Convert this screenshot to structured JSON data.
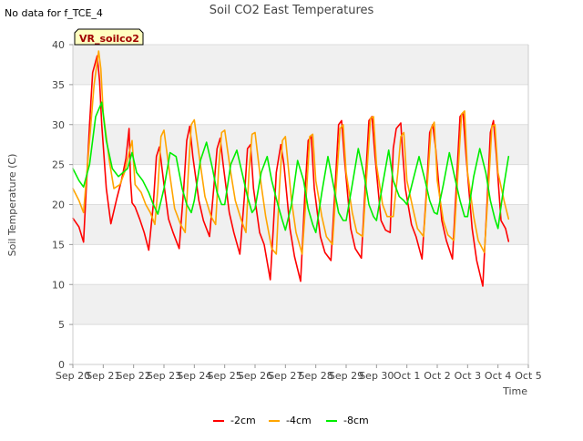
{
  "header": {
    "no_data_note": "No data for f_TCE_4",
    "title": "Soil CO2 East Temperatures"
  },
  "chart_data": {
    "type": "line",
    "title": "Soil CO2 East Temperatures",
    "xlabel": "Time",
    "ylabel": "Soil Temperature (C)",
    "station_label": "VR_soilco2",
    "x_tick_labels": [
      "Sep 20",
      "Sep 21",
      "Sep 22",
      "Sep 23",
      "Sep 24",
      "Sep 25",
      "Sep 26",
      "Sep 27",
      "Sep 28",
      "Sep 29",
      "Sep 30",
      "Oct 1",
      "Oct 2",
      "Oct 3",
      "Oct 4",
      "Oct 5"
    ],
    "y_ticks": [
      0,
      5,
      10,
      15,
      20,
      25,
      30,
      35,
      40
    ],
    "xlim": [
      0,
      15
    ],
    "ylim": [
      0,
      40
    ],
    "grid": "horizontal bands",
    "legend_position": "bottom-center",
    "series": [
      {
        "name": "-2cm",
        "color": "#ff0000",
        "x": [
          0.0,
          0.2,
          0.35,
          0.55,
          0.65,
          0.8,
          0.88,
          0.95,
          1.1,
          1.25,
          1.45,
          1.6,
          1.75,
          1.85,
          1.9,
          1.95,
          2.05,
          2.2,
          2.35,
          2.5,
          2.65,
          2.75,
          2.85,
          3.0,
          3.15,
          3.3,
          3.5,
          3.65,
          3.75,
          3.85,
          3.95,
          4.15,
          4.3,
          4.5,
          4.65,
          4.75,
          4.85,
          4.95,
          5.15,
          5.3,
          5.5,
          5.65,
          5.75,
          5.85,
          5.95,
          6.15,
          6.3,
          6.5,
          6.6,
          6.7,
          6.85,
          6.95,
          7.15,
          7.3,
          7.5,
          7.65,
          7.75,
          7.85,
          7.95,
          8.15,
          8.3,
          8.5,
          8.65,
          8.75,
          8.85,
          8.95,
          9.15,
          9.3,
          9.5,
          9.65,
          9.75,
          9.85,
          9.95,
          10.15,
          10.3,
          10.45,
          10.55,
          10.65,
          10.8,
          10.85,
          10.95,
          11.15,
          11.3,
          11.5,
          11.65,
          11.75,
          11.85,
          11.95,
          12.15,
          12.3,
          12.5,
          12.65,
          12.75,
          12.85,
          12.95,
          13.15,
          13.3,
          13.5,
          13.65,
          13.75,
          13.85,
          13.95,
          14.1,
          14.25,
          14.35
        ],
        "y": [
          18.3,
          17.2,
          15.3,
          30.0,
          36.5,
          38.6,
          35.5,
          30.0,
          22.0,
          17.6,
          20.8,
          23.0,
          25.8,
          29.5,
          23.0,
          20.2,
          19.7,
          18.2,
          16.5,
          14.3,
          20.0,
          26.0,
          27.2,
          22.5,
          18.2,
          16.5,
          14.5,
          22.0,
          28.0,
          29.8,
          26.0,
          20.5,
          18.0,
          16.0,
          22.5,
          27.0,
          28.3,
          25.0,
          19.0,
          16.5,
          13.8,
          21.0,
          27.0,
          27.5,
          22.0,
          16.5,
          15.0,
          10.6,
          17.0,
          24.0,
          27.5,
          25.0,
          17.0,
          13.5,
          10.4,
          22.0,
          28.0,
          28.5,
          22.0,
          16.0,
          14.0,
          13.0,
          23.0,
          30.0,
          30.5,
          25.5,
          17.0,
          14.5,
          13.3,
          24.0,
          30.5,
          31.0,
          26.0,
          18.0,
          16.8,
          16.5,
          27.0,
          29.5,
          30.2,
          27.0,
          22.0,
          17.5,
          16.0,
          13.2,
          22.0,
          29.0,
          30.0,
          27.0,
          18.0,
          15.5,
          13.2,
          24.0,
          31.0,
          31.5,
          26.0,
          17.0,
          13.0,
          9.8,
          21.0,
          29.0,
          30.5,
          26.0,
          18.0,
          17.0,
          15.4
        ]
      },
      {
        "name": "-4cm",
        "color": "#ffa500",
        "x": [
          0.0,
          0.2,
          0.35,
          0.55,
          0.7,
          0.85,
          0.92,
          1.0,
          1.2,
          1.35,
          1.55,
          1.7,
          1.85,
          1.95,
          2.05,
          2.25,
          2.4,
          2.55,
          2.7,
          2.8,
          2.9,
          3.0,
          3.2,
          3.35,
          3.55,
          3.7,
          3.8,
          3.9,
          4.0,
          4.2,
          4.35,
          4.55,
          4.7,
          4.8,
          4.9,
          5.0,
          5.2,
          5.35,
          5.55,
          5.7,
          5.8,
          5.9,
          6.0,
          6.2,
          6.35,
          6.55,
          6.7,
          6.8,
          6.9,
          7.0,
          7.2,
          7.35,
          7.55,
          7.7,
          7.8,
          7.9,
          8.0,
          8.2,
          8.35,
          8.55,
          8.7,
          8.8,
          8.9,
          9.0,
          9.2,
          9.35,
          9.55,
          9.7,
          9.8,
          9.9,
          10.0,
          10.2,
          10.35,
          10.55,
          10.7,
          10.8,
          10.9,
          11.0,
          11.2,
          11.35,
          11.55,
          11.7,
          11.8,
          11.9,
          12.0,
          12.2,
          12.35,
          12.55,
          12.7,
          12.8,
          12.9,
          13.0,
          13.2,
          13.35,
          13.55,
          13.7,
          13.8,
          13.9,
          14.0,
          14.2,
          14.35
        ],
        "y": [
          22.0,
          20.5,
          19.0,
          28.0,
          35.0,
          39.2,
          37.0,
          31.5,
          25.5,
          22.0,
          22.5,
          24.0,
          26.5,
          28.0,
          22.5,
          21.5,
          20.0,
          19.0,
          17.5,
          22.0,
          28.5,
          29.3,
          23.5,
          19.5,
          17.5,
          16.5,
          24.0,
          30.0,
          30.6,
          25.0,
          21.0,
          18.5,
          17.5,
          24.5,
          29.0,
          29.3,
          24.0,
          20.5,
          18.0,
          16.5,
          24.0,
          28.8,
          29.0,
          22.5,
          18.5,
          14.5,
          13.8,
          22.0,
          28.0,
          28.5,
          20.5,
          16.5,
          13.8,
          22.0,
          28.5,
          28.8,
          23.0,
          18.5,
          16.0,
          15.0,
          24.0,
          29.5,
          30.0,
          24.0,
          19.0,
          16.5,
          16.0,
          25.0,
          30.8,
          31.0,
          25.0,
          20.0,
          18.5,
          18.5,
          24.0,
          28.5,
          29.0,
          23.0,
          19.5,
          17.0,
          16.0,
          24.0,
          29.5,
          30.3,
          23.0,
          18.0,
          16.2,
          15.5,
          25.0,
          31.3,
          31.7,
          24.0,
          18.5,
          15.5,
          14.0,
          23.0,
          29.8,
          30.0,
          24.0,
          20.5,
          18.2
        ]
      },
      {
        "name": "-8cm",
        "color": "#00ee00",
        "x": [
          0.0,
          0.2,
          0.35,
          0.55,
          0.75,
          0.95,
          1.1,
          1.3,
          1.5,
          1.65,
          1.8,
          1.95,
          2.1,
          2.3,
          2.5,
          2.65,
          2.8,
          3.0,
          3.2,
          3.4,
          3.6,
          3.75,
          3.9,
          4.0,
          4.2,
          4.4,
          4.6,
          4.75,
          4.9,
          5.0,
          5.2,
          5.4,
          5.6,
          5.75,
          5.9,
          6.0,
          6.2,
          6.4,
          6.55,
          6.75,
          6.9,
          7.0,
          7.2,
          7.4,
          7.6,
          7.75,
          7.9,
          8.0,
          8.2,
          8.4,
          8.6,
          8.75,
          8.9,
          9.0,
          9.2,
          9.4,
          9.6,
          9.75,
          9.9,
          10.0,
          10.2,
          10.4,
          10.55,
          10.75,
          10.9,
          11.0,
          11.2,
          11.4,
          11.6,
          11.75,
          11.9,
          12.0,
          12.2,
          12.4,
          12.6,
          12.75,
          12.9,
          13.0,
          13.2,
          13.4,
          13.6,
          13.75,
          13.9,
          14.0,
          14.2,
          14.35
        ],
        "y": [
          24.5,
          23.0,
          22.2,
          25.0,
          31.0,
          32.8,
          28.0,
          24.5,
          23.5,
          24.0,
          24.5,
          26.5,
          24.0,
          23.0,
          21.5,
          20.0,
          18.8,
          22.0,
          26.5,
          26.0,
          22.0,
          20.0,
          19.0,
          20.5,
          25.5,
          27.8,
          24.5,
          21.5,
          20.0,
          20.0,
          25.0,
          26.8,
          23.5,
          21.0,
          19.0,
          19.5,
          24.0,
          26.0,
          23.0,
          20.0,
          18.0,
          16.8,
          20.0,
          25.5,
          23.0,
          19.5,
          17.5,
          16.5,
          21.5,
          26.0,
          22.0,
          19.0,
          18.0,
          18.0,
          22.5,
          27.0,
          23.5,
          20.0,
          18.5,
          18.0,
          22.5,
          26.8,
          23.0,
          21.0,
          20.5,
          20.0,
          23.0,
          26.0,
          23.0,
          20.5,
          19.0,
          18.8,
          22.5,
          26.5,
          23.0,
          20.5,
          18.5,
          18.5,
          23.5,
          27.0,
          24.0,
          20.5,
          18.2,
          17.0,
          22.5,
          26.0
        ]
      }
    ]
  }
}
